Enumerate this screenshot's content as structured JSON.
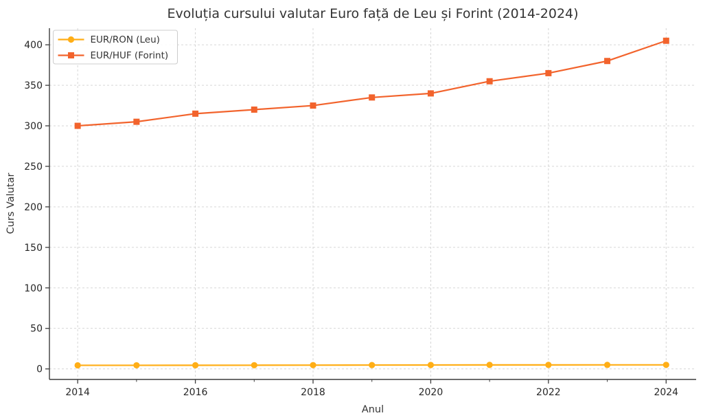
{
  "chart_data": {
    "type": "line",
    "title": "Evoluția cursului valutar Euro față de Leu și Forint (2014-2024)",
    "xlabel": "Anul",
    "ylabel": "Curs Valutar",
    "x": [
      2014,
      2015,
      2016,
      2017,
      2018,
      2019,
      2020,
      2021,
      2022,
      2023,
      2024
    ],
    "series": [
      {
        "name": "EUR/RON (Leu)",
        "color": "#FFAE16",
        "marker": "circle",
        "values": [
          4.44,
          4.45,
          4.49,
          4.57,
          4.66,
          4.75,
          4.84,
          4.92,
          4.93,
          4.97,
          4.98
        ]
      },
      {
        "name": "EUR/HUF (Forint)",
        "color": "#F2632C",
        "marker": "square",
        "values": [
          300,
          305,
          315,
          320,
          325,
          335,
          340,
          355,
          365,
          380,
          405
        ]
      }
    ],
    "xticks": [
      2014,
      2016,
      2018,
      2020,
      2022,
      2024
    ],
    "xticks_minor": [
      2015,
      2017,
      2019,
      2021,
      2023
    ],
    "yticks": [
      0,
      50,
      100,
      150,
      200,
      250,
      300,
      350,
      400
    ],
    "xlim": [
      2013.52,
      2024.51
    ],
    "ylim": [
      -13,
      420.5
    ],
    "grid": true,
    "grid_style": "dashed",
    "legend_position": "upper-left",
    "colors": {
      "background": "#ffffff",
      "grid": "#d0d0d0",
      "spine": "#3c3c3c",
      "title_text": "#333333",
      "tick_text": "#262626",
      "legend_border": "#cccccc"
    }
  }
}
